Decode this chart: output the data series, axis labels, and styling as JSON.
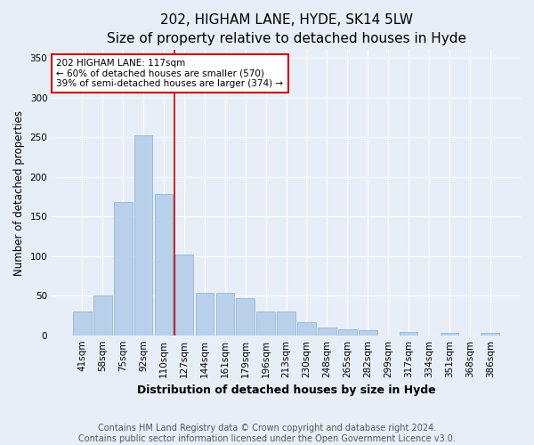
{
  "title1": "202, HIGHAM LANE, HYDE, SK14 5LW",
  "title2": "Size of property relative to detached houses in Hyde",
  "xlabel": "Distribution of detached houses by size in Hyde",
  "ylabel": "Number of detached properties",
  "categories": [
    "41sqm",
    "58sqm",
    "75sqm",
    "92sqm",
    "110sqm",
    "127sqm",
    "144sqm",
    "161sqm",
    "179sqm",
    "196sqm",
    "213sqm",
    "230sqm",
    "248sqm",
    "265sqm",
    "282sqm",
    "299sqm",
    "317sqm",
    "334sqm",
    "351sqm",
    "368sqm",
    "386sqm"
  ],
  "values": [
    30,
    50,
    168,
    253,
    178,
    102,
    54,
    54,
    47,
    30,
    30,
    16,
    10,
    8,
    6,
    0,
    4,
    0,
    3,
    0,
    3
  ],
  "bar_color": "#b8d0ea",
  "bar_edge_color": "#90b8d8",
  "vline_x_index": 4.5,
  "vline_color": "#cc0000",
  "annotation_text": "202 HIGHAM LANE: 117sqm\n← 60% of detached houses are smaller (570)\n39% of semi-detached houses are larger (374) →",
  "annotation_box_color": "#ffffff",
  "annotation_box_edge_color": "#cc0000",
  "footer1": "Contains HM Land Registry data © Crown copyright and database right 2024.",
  "footer2": "Contains public sector information licensed under the Open Government Licence v3.0.",
  "ylim": [
    0,
    360
  ],
  "yticks": [
    0,
    50,
    100,
    150,
    200,
    250,
    300,
    350
  ],
  "background_color": "#e8eef8",
  "plot_background_color": "#e8eef8",
  "title1_fontsize": 11,
  "title2_fontsize": 10,
  "xlabel_fontsize": 9,
  "ylabel_fontsize": 8.5,
  "tick_fontsize": 7.5,
  "footer_fontsize": 7
}
